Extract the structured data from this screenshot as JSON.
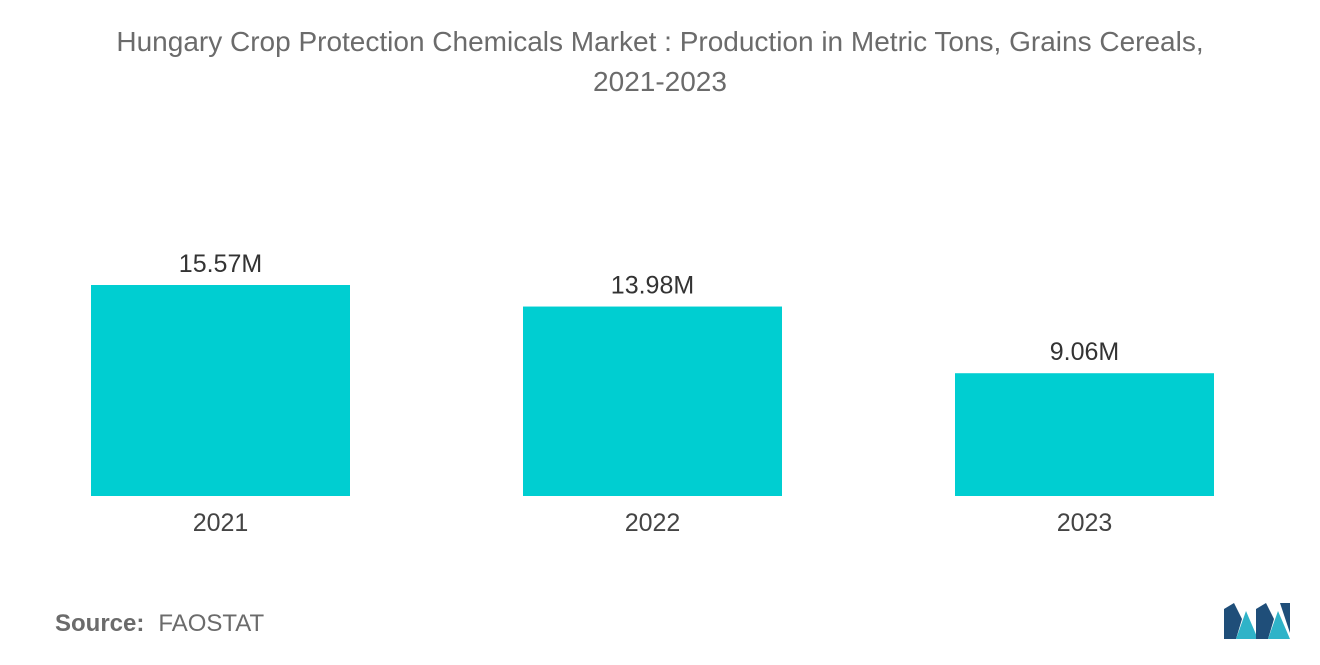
{
  "chart_data": {
    "type": "bar",
    "title_lines": [
      "Hungary Crop Protection Chemicals Market : Production in Metric Tons, Grains Cereals,",
      "2021-2023"
    ],
    "categories": [
      "2021",
      "2022",
      "2023"
    ],
    "values": [
      15.57,
      13.98,
      9.06
    ],
    "value_labels": [
      "15.57M",
      "13.98M",
      "9.06M"
    ],
    "xlabel": "",
    "ylabel": "",
    "grid": false,
    "legend": "none",
    "bar_color": "#00CED1"
  },
  "source": {
    "label": "Source:",
    "value": "FAOSTAT"
  },
  "logo": {
    "icon": "mordor-intelligence-logo",
    "colors": [
      "#1F4E79",
      "#2FB3C8"
    ]
  }
}
